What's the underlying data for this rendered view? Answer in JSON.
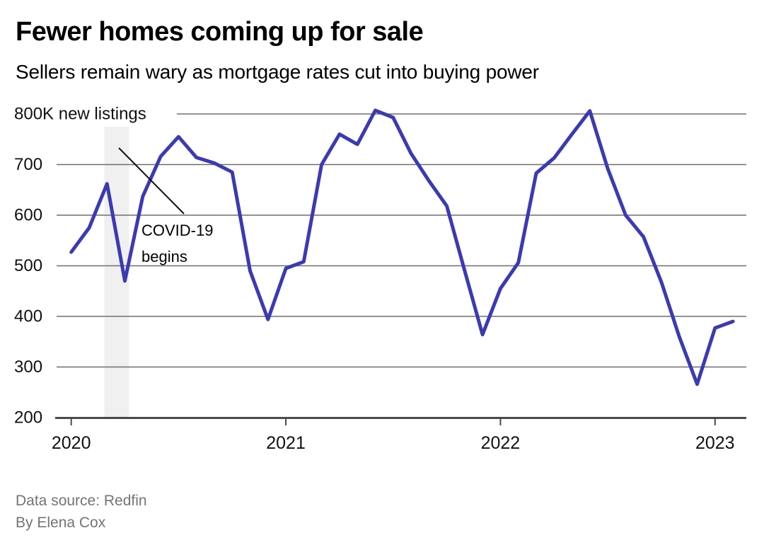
{
  "header": {
    "title": "Fewer homes coming up for sale",
    "subtitle": "Sellers remain wary as mortgage rates cut into buying power"
  },
  "footer": {
    "source": "Data source: Redfin",
    "byline": "By Elena Cox"
  },
  "chart_data": {
    "type": "line",
    "title": "Fewer homes coming up for sale",
    "subtitle": "Sellers remain wary as mortgage rates cut into buying power",
    "series_name": "New listings (thousands)",
    "unit_label": "K new listings",
    "x": [
      "2020-01",
      "2020-02",
      "2020-03",
      "2020-04",
      "2020-05",
      "2020-06",
      "2020-07",
      "2020-08",
      "2020-09",
      "2020-10",
      "2020-11",
      "2020-12",
      "2021-01",
      "2021-02",
      "2021-03",
      "2021-04",
      "2021-05",
      "2021-06",
      "2021-07",
      "2021-08",
      "2021-09",
      "2021-10",
      "2021-11",
      "2021-12",
      "2022-01",
      "2022-02",
      "2022-03",
      "2022-04",
      "2022-05",
      "2022-06",
      "2022-07",
      "2022-08",
      "2022-09",
      "2022-10",
      "2022-11",
      "2022-12",
      "2023-01",
      "2023-02"
    ],
    "values": [
      527,
      575,
      662,
      470,
      637,
      716,
      755,
      714,
      703,
      685,
      490,
      394,
      495,
      508,
      700,
      760,
      740,
      807,
      793,
      722,
      668,
      618,
      490,
      364,
      455,
      506,
      683,
      713,
      760,
      806,
      692,
      600,
      557,
      468,
      360,
      266,
      377,
      390
    ],
    "ylim": [
      200,
      800
    ],
    "yticks": [
      {
        "value": 800,
        "label": "800K new listings"
      },
      {
        "value": 700,
        "label": "700"
      },
      {
        "value": 600,
        "label": "600"
      },
      {
        "value": 500,
        "label": "500"
      },
      {
        "value": 400,
        "label": "400"
      },
      {
        "value": 300,
        "label": "300"
      },
      {
        "value": 200,
        "label": "200"
      }
    ],
    "xticks": [
      {
        "month_index": 0,
        "label": "2020"
      },
      {
        "month_index": 12,
        "label": "2021"
      },
      {
        "month_index": 24,
        "label": "2022"
      },
      {
        "month_index": 36,
        "label": "2023"
      }
    ],
    "grid": true,
    "legend": "none",
    "line_color": "#3b3ab4",
    "annotations": {
      "band": {
        "x0_month_index": 1.85,
        "x1_month_index": 3.23,
        "color": "#f0f0f0"
      },
      "callout": {
        "lines": [
          "COVID-19",
          "begins"
        ],
        "color": "#111111"
      }
    }
  }
}
